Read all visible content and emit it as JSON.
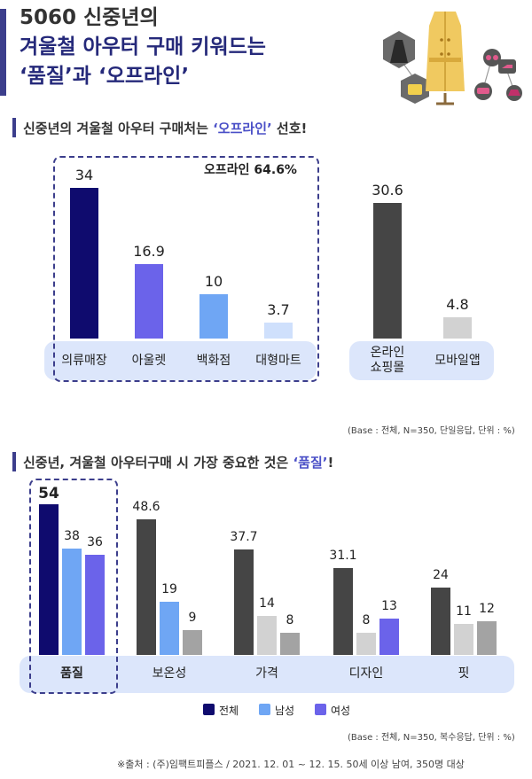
{
  "header": {
    "line1": "5060 신중년의",
    "line2": "겨울철 아우터 구매 키워드는",
    "line3": "‘품질’과 ‘오프라인’"
  },
  "section1": {
    "title_pre": "신중년의 겨울철 아우터 구매처는 ",
    "title_hl": "‘오프라인’",
    "title_post": " 선호!",
    "offline_box_label": "오프라인 64.6%",
    "note": "(Base : 전체, N=350, 단일응답, 단위 : %)"
  },
  "section2": {
    "title_pre": "신중년, 겨울철 아우터구매 시 가장 중요한 것은 ",
    "title_hl": "‘품질’",
    "title_post": "!",
    "note": "(Base : 전체, N=350, 복수응답, 단위 : %)"
  },
  "source": "※출처 : (주)임팩트피플스 / 2021. 12. 01 ~ 12. 15. 50세 이상 남여, 350명 대상",
  "colors": {
    "navy": "#0f0b6e",
    "purple": "#6b63ea",
    "lightblue": "#6fa6f4",
    "paleblue": "#cfe0fc",
    "darkgray": "#454545",
    "lightgray": "#d2d2d2",
    "midgray": "#a3a3a3",
    "band": "#dce6fb",
    "accent": "#3c3e8c"
  },
  "chart_data": [
    {
      "type": "bar",
      "categories": [
        "의류매장",
        "아울렛",
        "백화점",
        "대형마트",
        "온라인 쇼핑몰",
        "모바일앱"
      ],
      "values": [
        34,
        16.9,
        10,
        3.7,
        30.6,
        4.8
      ],
      "colors": [
        "#0f0b6e",
        "#6b63ea",
        "#6fa6f4",
        "#cfe0fc",
        "#454545",
        "#d2d2d2"
      ]
    },
    {
      "type": "bar",
      "categories": [
        "품질",
        "보온성",
        "가격",
        "디자인",
        "핏"
      ],
      "series": [
        {
          "name": "전체",
          "values": [
            54,
            48.6,
            37.7,
            31.1,
            24
          ],
          "color": "#0f0b6e"
        },
        {
          "name": "남성",
          "values": [
            38,
            19,
            14,
            8,
            11
          ],
          "color": "#6fa6f4"
        },
        {
          "name": "여성",
          "values": [
            36,
            9,
            8,
            13,
            12
          ],
          "color": "#6b63ea"
        }
      ],
      "series_colors_by_category": [
        [
          "#0f0b6e",
          "#6fa6f4",
          "#6b63ea"
        ],
        [
          "#454545",
          "#6fa6f4",
          "#a3a3a3"
        ],
        [
          "#454545",
          "#d2d2d2",
          "#a3a3a3"
        ],
        [
          "#454545",
          "#d2d2d2",
          "#6b63ea"
        ],
        [
          "#454545",
          "#d2d2d2",
          "#a3a3a3"
        ]
      ],
      "legend_position": "bottom-center"
    }
  ]
}
